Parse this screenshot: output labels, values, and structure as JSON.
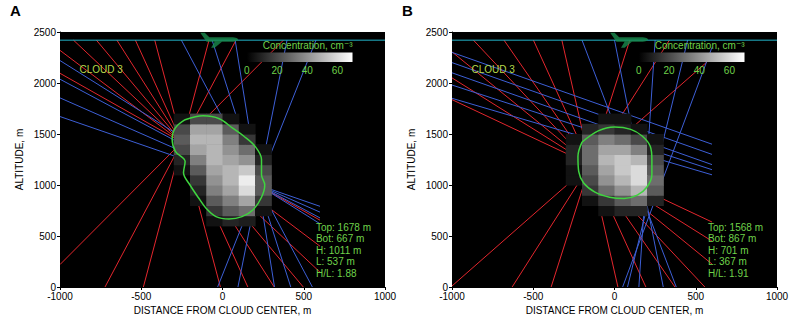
{
  "chart_data": [
    {
      "type": "heatmap",
      "panel": "A",
      "title": "CLOUD 3",
      "xlabel": "DISTANCE FROM CLOUD CENTER, m",
      "ylabel": "ALTITUDE, m",
      "xlim": [
        -1000,
        1000
      ],
      "xticks": [
        -1000,
        -500,
        0,
        500,
        1000
      ],
      "ylim": [
        0,
        2500
      ],
      "yticks": [
        0,
        500,
        1000,
        1500,
        2000,
        2500
      ],
      "cells": {
        "x": [
          -250,
          -150,
          -50,
          50,
          150,
          250
        ],
        "y": [
          650,
          750,
          850,
          950,
          1050,
          1150,
          1250,
          1350,
          1450,
          1550,
          1650
        ],
        "values": [
          [
            0,
            0,
            5,
            10,
            8,
            0
          ],
          [
            0,
            0,
            15,
            25,
            30,
            5
          ],
          [
            0,
            5,
            25,
            35,
            45,
            15
          ],
          [
            0,
            10,
            35,
            45,
            60,
            25
          ],
          [
            0,
            15,
            40,
            50,
            65,
            25
          ],
          [
            5,
            25,
            45,
            50,
            55,
            20
          ],
          [
            10,
            35,
            50,
            45,
            40,
            10
          ],
          [
            20,
            45,
            50,
            40,
            30,
            5
          ],
          [
            25,
            50,
            50,
            35,
            15,
            0
          ],
          [
            20,
            45,
            45,
            25,
            5,
            0
          ],
          [
            5,
            20,
            20,
            5,
            0,
            0
          ]
        ]
      },
      "colorbar": {
        "label": "Concentration, cm⁻³",
        "range": [
          0,
          70
        ],
        "ticks": [
          0,
          20,
          40,
          60
        ]
      },
      "outline": {
        "color": "#3fd43f",
        "points": [
          [
            -230,
            1640
          ],
          [
            -120,
            1678
          ],
          [
            -20,
            1650
          ],
          [
            60,
            1560
          ],
          [
            130,
            1480
          ],
          [
            200,
            1380
          ],
          [
            240,
            1250
          ],
          [
            240,
            1100
          ],
          [
            260,
            1000
          ],
          [
            240,
            880
          ],
          [
            190,
            760
          ],
          [
            120,
            690
          ],
          [
            40,
            667
          ],
          [
            -40,
            690
          ],
          [
            -100,
            770
          ],
          [
            -150,
            880
          ],
          [
            -200,
            1000
          ],
          [
            -240,
            1120
          ],
          [
            -230,
            1230
          ],
          [
            -290,
            1330
          ],
          [
            -310,
            1450
          ],
          [
            -290,
            1560
          ],
          [
            -230,
            1640
          ]
        ]
      },
      "rays": [
        {
          "color": "#e3262d",
          "segments": [
            [
              -1000,
              2095,
              600,
              655
            ],
            [
              -1000,
              2320,
              600,
              400
            ],
            [
              -917,
              2420,
              600,
              145
            ],
            [
              -776,
              2420,
              497,
              0
            ],
            [
              -650,
              2420,
              318,
              0
            ],
            [
              -536,
              2420,
              156,
              0
            ],
            [
              -417,
              2420,
              -13,
              0
            ],
            [
              -83,
              2420,
              -487,
              0
            ],
            [
              83,
              2420,
              -723,
              0
            ],
            [
              375,
              2420,
              -1000,
              220
            ]
          ]
        },
        {
          "color": "#3d5fd6",
          "segments": [
            [
              -1000,
              1671,
              600,
              791
            ],
            [
              -1000,
              1854,
              600,
              734
            ],
            [
              -1000,
              2037,
              600,
              677
            ],
            [
              -1000,
              2220,
              600,
              620
            ],
            [
              -253,
              2420,
              553,
              0
            ],
            [
              -64,
              2420,
              420,
              0
            ],
            [
              78,
              2420,
              320,
              0
            ],
            [
              397,
              2420,
              95,
              0
            ],
            [
              575,
              2420,
              -30,
              0
            ]
          ]
        }
      ],
      "flight_altitude": 2420,
      "aircraft_x": -20,
      "annotations": [
        "Top: 1678 m",
        "Bot: 667 m",
        "H: 1011 m",
        "L: 537 m",
        "H/L: 1.88"
      ]
    },
    {
      "type": "heatmap",
      "panel": "B",
      "title": "CLOUD 3",
      "xlabel": "DISTANCE FROM CLOUD CENTER, m",
      "ylabel": "ALTITUDE, m",
      "xlim": [
        -1000,
        1000
      ],
      "xticks": [
        -1000,
        -500,
        0,
        500,
        1000
      ],
      "ylim": [
        0,
        2500
      ],
      "yticks": [
        0,
        500,
        1000,
        1500,
        2000,
        2500
      ],
      "cells": {
        "x": [
          -250,
          -150,
          -50,
          50,
          150,
          250
        ],
        "y": [
          750,
          850,
          950,
          1050,
          1150,
          1250,
          1350,
          1450,
          1550,
          1650
        ],
        "values": [
          [
            0,
            0,
            5,
            10,
            10,
            0
          ],
          [
            0,
            5,
            15,
            25,
            30,
            10
          ],
          [
            0,
            15,
            30,
            40,
            50,
            25
          ],
          [
            5,
            20,
            40,
            50,
            60,
            30
          ],
          [
            5,
            25,
            45,
            55,
            60,
            25
          ],
          [
            10,
            30,
            50,
            55,
            50,
            20
          ],
          [
            10,
            30,
            45,
            45,
            35,
            10
          ],
          [
            5,
            25,
            35,
            30,
            20,
            5
          ],
          [
            0,
            10,
            15,
            10,
            5,
            0
          ],
          [
            0,
            0,
            5,
            5,
            0,
            0
          ]
        ]
      },
      "colorbar": {
        "label": "Concentration, cm⁻³",
        "range": [
          0,
          70
        ],
        "ticks": [
          0,
          20,
          40,
          60
        ]
      },
      "outline": {
        "color": "#3fd43f",
        "points": [
          [
            -200,
            1420
          ],
          [
            -100,
            1530
          ],
          [
            0,
            1568
          ],
          [
            100,
            1545
          ],
          [
            170,
            1480
          ],
          [
            220,
            1380
          ],
          [
            230,
            1250
          ],
          [
            230,
            1100
          ],
          [
            200,
            980
          ],
          [
            140,
            900
          ],
          [
            60,
            867
          ],
          [
            -30,
            880
          ],
          [
            -120,
            930
          ],
          [
            -190,
            1020
          ],
          [
            -220,
            1130
          ],
          [
            -225,
            1280
          ],
          [
            -200,
            1420
          ]
        ]
      },
      "rays": [
        {
          "color": "#e3262d",
          "segments": [
            [
              -1000,
              1837,
              600,
              637
            ],
            [
              -1000,
              2050,
              600,
              450
            ],
            [
              -1000,
              2305,
              600,
              225
            ],
            [
              -868,
              2420,
              556,
              0
            ],
            [
              -680,
              2420,
              372,
              0
            ],
            [
              -499,
              2420,
              193,
              0
            ],
            [
              -324,
              2420,
              21,
              0
            ],
            [
              94,
              2420,
              -390,
              0
            ],
            [
              338,
              2420,
              -630,
              0
            ],
            [
              600,
              2250,
              -1000,
              10
            ]
          ]
        },
        {
          "color": "#3d5fd6",
          "segments": [
            [
              -1000,
              2300,
              600,
              1400
            ],
            [
              -1000,
              2200,
              600,
              1300
            ],
            [
              -1000,
              2100,
              600,
              1200
            ],
            [
              -1000,
              1980,
              600,
              1150
            ],
            [
              -1000,
              1850,
              600,
              1100
            ],
            [
              -200,
              2420,
              380,
              0
            ],
            [
              0,
              2420,
              300,
              0
            ],
            [
              250,
              2420,
              150,
              0
            ],
            [
              450,
              2420,
              80,
              0
            ],
            [
              600,
              2350,
              50,
              0
            ]
          ]
        }
      ],
      "flight_altitude": 2420,
      "aircraft_x": 90,
      "annotations": [
        "Top: 1568 m",
        "Bot: 867 m",
        "H: 701 m",
        "L: 367 m",
        "H/L: 1.91"
      ]
    }
  ]
}
